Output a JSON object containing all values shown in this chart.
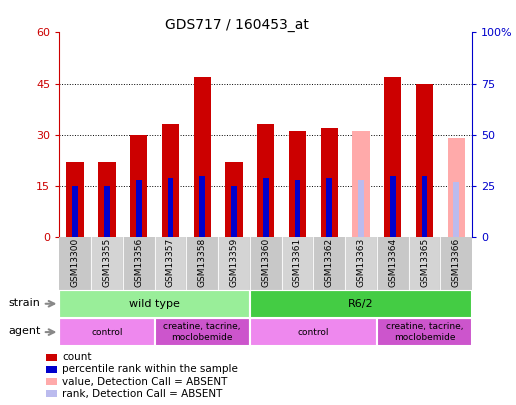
{
  "title": "GDS717 / 160453_at",
  "samples": [
    "GSM13300",
    "GSM13355",
    "GSM13356",
    "GSM13357",
    "GSM13358",
    "GSM13359",
    "GSM13360",
    "GSM13361",
    "GSM13362",
    "GSM13363",
    "GSM13364",
    "GSM13365",
    "GSM13366"
  ],
  "count_values": [
    22,
    22,
    30,
    33,
    47,
    22,
    33,
    31,
    32,
    0,
    47,
    45,
    0
  ],
  "rank_values": [
    25,
    25,
    28,
    29,
    30,
    25,
    29,
    28,
    29,
    0,
    30,
    30,
    0
  ],
  "absent_count": [
    0,
    0,
    0,
    0,
    0,
    0,
    0,
    0,
    0,
    31,
    0,
    0,
    29
  ],
  "absent_rank": [
    0,
    0,
    0,
    0,
    0,
    0,
    0,
    0,
    0,
    28,
    0,
    0,
    27
  ],
  "count_color": "#cc0000",
  "rank_color": "#0000cc",
  "absent_count_color": "#ffaaaa",
  "absent_rank_color": "#bbbbee",
  "ylim_left": [
    0,
    60
  ],
  "ylim_right": [
    0,
    100
  ],
  "yticks_left": [
    0,
    15,
    30,
    45,
    60
  ],
  "yticks_right": [
    0,
    25,
    50,
    75,
    100
  ],
  "ytick_labels_left": [
    "0",
    "15",
    "30",
    "45",
    "60"
  ],
  "ytick_labels_right": [
    "0",
    "25",
    "50",
    "75",
    "100%"
  ],
  "strain_groups": [
    {
      "label": "wild type",
      "start": 0,
      "end": 6,
      "color": "#99ee99"
    },
    {
      "label": "R6/2",
      "start": 6,
      "end": 13,
      "color": "#44cc44"
    }
  ],
  "agent_groups": [
    {
      "label": "control",
      "start": 0,
      "end": 3,
      "color": "#ee88ee"
    },
    {
      "label": "creatine, tacrine,\nmoclobemide",
      "start": 3,
      "end": 6,
      "color": "#cc55cc"
    },
    {
      "label": "control",
      "start": 6,
      "end": 10,
      "color": "#ee88ee"
    },
    {
      "label": "creatine, tacrine,\nmoclobemide",
      "start": 10,
      "end": 13,
      "color": "#cc55cc"
    }
  ],
  "left_axis_color": "#cc0000",
  "right_axis_color": "#0000cc",
  "background_color": "#ffffff",
  "label_bg": "#cccccc"
}
